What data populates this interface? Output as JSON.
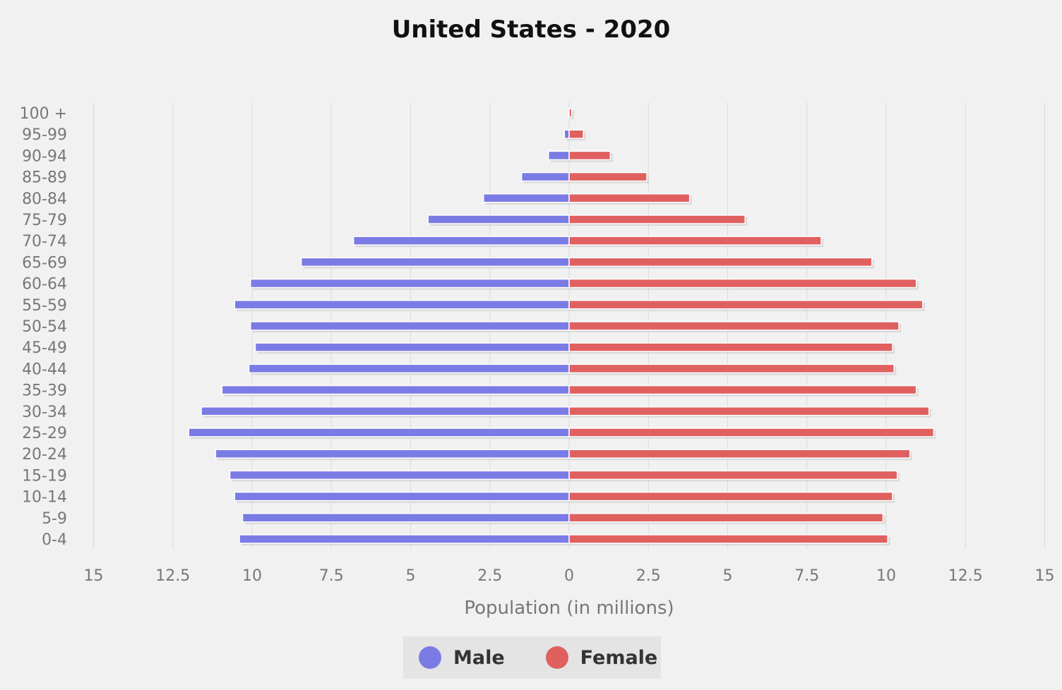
{
  "chart_data": {
    "type": "bar",
    "orientation": "horizontal",
    "title": "United States - 2020",
    "xlabel": "Population (in millions)",
    "ylabel": "",
    "xlim": [
      -15,
      15
    ],
    "xticks": [
      "15",
      "12.5",
      "10",
      "7.5",
      "5",
      "2.5",
      "0",
      "2.5",
      "5",
      "7.5",
      "10",
      "12.5",
      "15"
    ],
    "grid": true,
    "legend_position": "bottom",
    "categories": [
      "100 +",
      "95-99",
      "90-94",
      "85-89",
      "80-84",
      "75-79",
      "70-74",
      "65-69",
      "60-64",
      "55-59",
      "50-54",
      "45-49",
      "40-44",
      "35-39",
      "30-34",
      "25-29",
      "20-24",
      "15-19",
      "10-14",
      "5-9",
      "0-4"
    ],
    "series": [
      {
        "name": "Male",
        "color": "#7b7be6",
        "values": [
          0.02,
          0.15,
          0.65,
          1.5,
          2.7,
          4.45,
          6.8,
          8.45,
          10.05,
          10.55,
          10.05,
          9.9,
          10.1,
          10.95,
          11.6,
          12.0,
          11.15,
          10.7,
          10.55,
          10.3,
          10.4
        ]
      },
      {
        "name": "Female",
        "color": "#e06060",
        "values": [
          0.08,
          0.45,
          1.3,
          2.45,
          3.8,
          5.55,
          7.95,
          9.55,
          10.95,
          11.15,
          10.4,
          10.2,
          10.25,
          10.95,
          11.35,
          11.5,
          10.75,
          10.35,
          10.2,
          9.9,
          10.05
        ]
      }
    ]
  }
}
